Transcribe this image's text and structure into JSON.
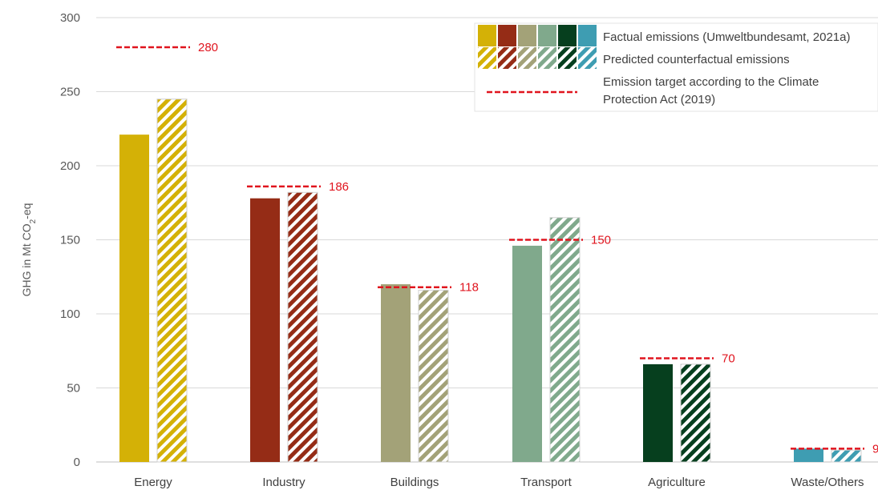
{
  "chart_data": {
    "type": "bar",
    "ylabel": "GHG in Mt CO",
    "ylabel_sub": "2",
    "ylabel_suffix": "-eq",
    "ylim": [
      0,
      300
    ],
    "yticks": [
      0,
      50,
      100,
      150,
      200,
      250,
      300
    ],
    "grid": true,
    "legend_placement": "top-right",
    "categories": [
      "Energy",
      "Industry",
      "Buildings",
      "Transport",
      "Agriculture",
      "Waste/Others"
    ],
    "colors": [
      "#d4b106",
      "#952c16",
      "#a3a278",
      "#80a98c",
      "#063f1e",
      "#3e9db2"
    ],
    "target_color": "#e0141e",
    "series": [
      {
        "name": "Factual emissions (Umweltbundesamt, 2021a)",
        "style": "solid",
        "values": [
          221,
          178,
          120,
          146,
          66,
          9
        ]
      },
      {
        "name": "Predicted counterfactual emissions",
        "style": "hatched",
        "values": [
          245,
          182,
          116,
          165,
          66,
          8
        ]
      },
      {
        "name": "Emission target according to the Climate Protection Act (2019)",
        "style": "dashed",
        "values": [
          280,
          186,
          118,
          150,
          70,
          9
        ]
      }
    ],
    "target_labels": [
      "280",
      "186",
      "118",
      "150",
      "70",
      "9"
    ],
    "legend_lines": [
      [
        "Factual emissions (Umweltbundesamt, 2021a)"
      ],
      [
        "Predicted counterfactual emissions"
      ],
      [
        "Emission target according to the Climate",
        "Protection Act (2019)"
      ]
    ]
  }
}
